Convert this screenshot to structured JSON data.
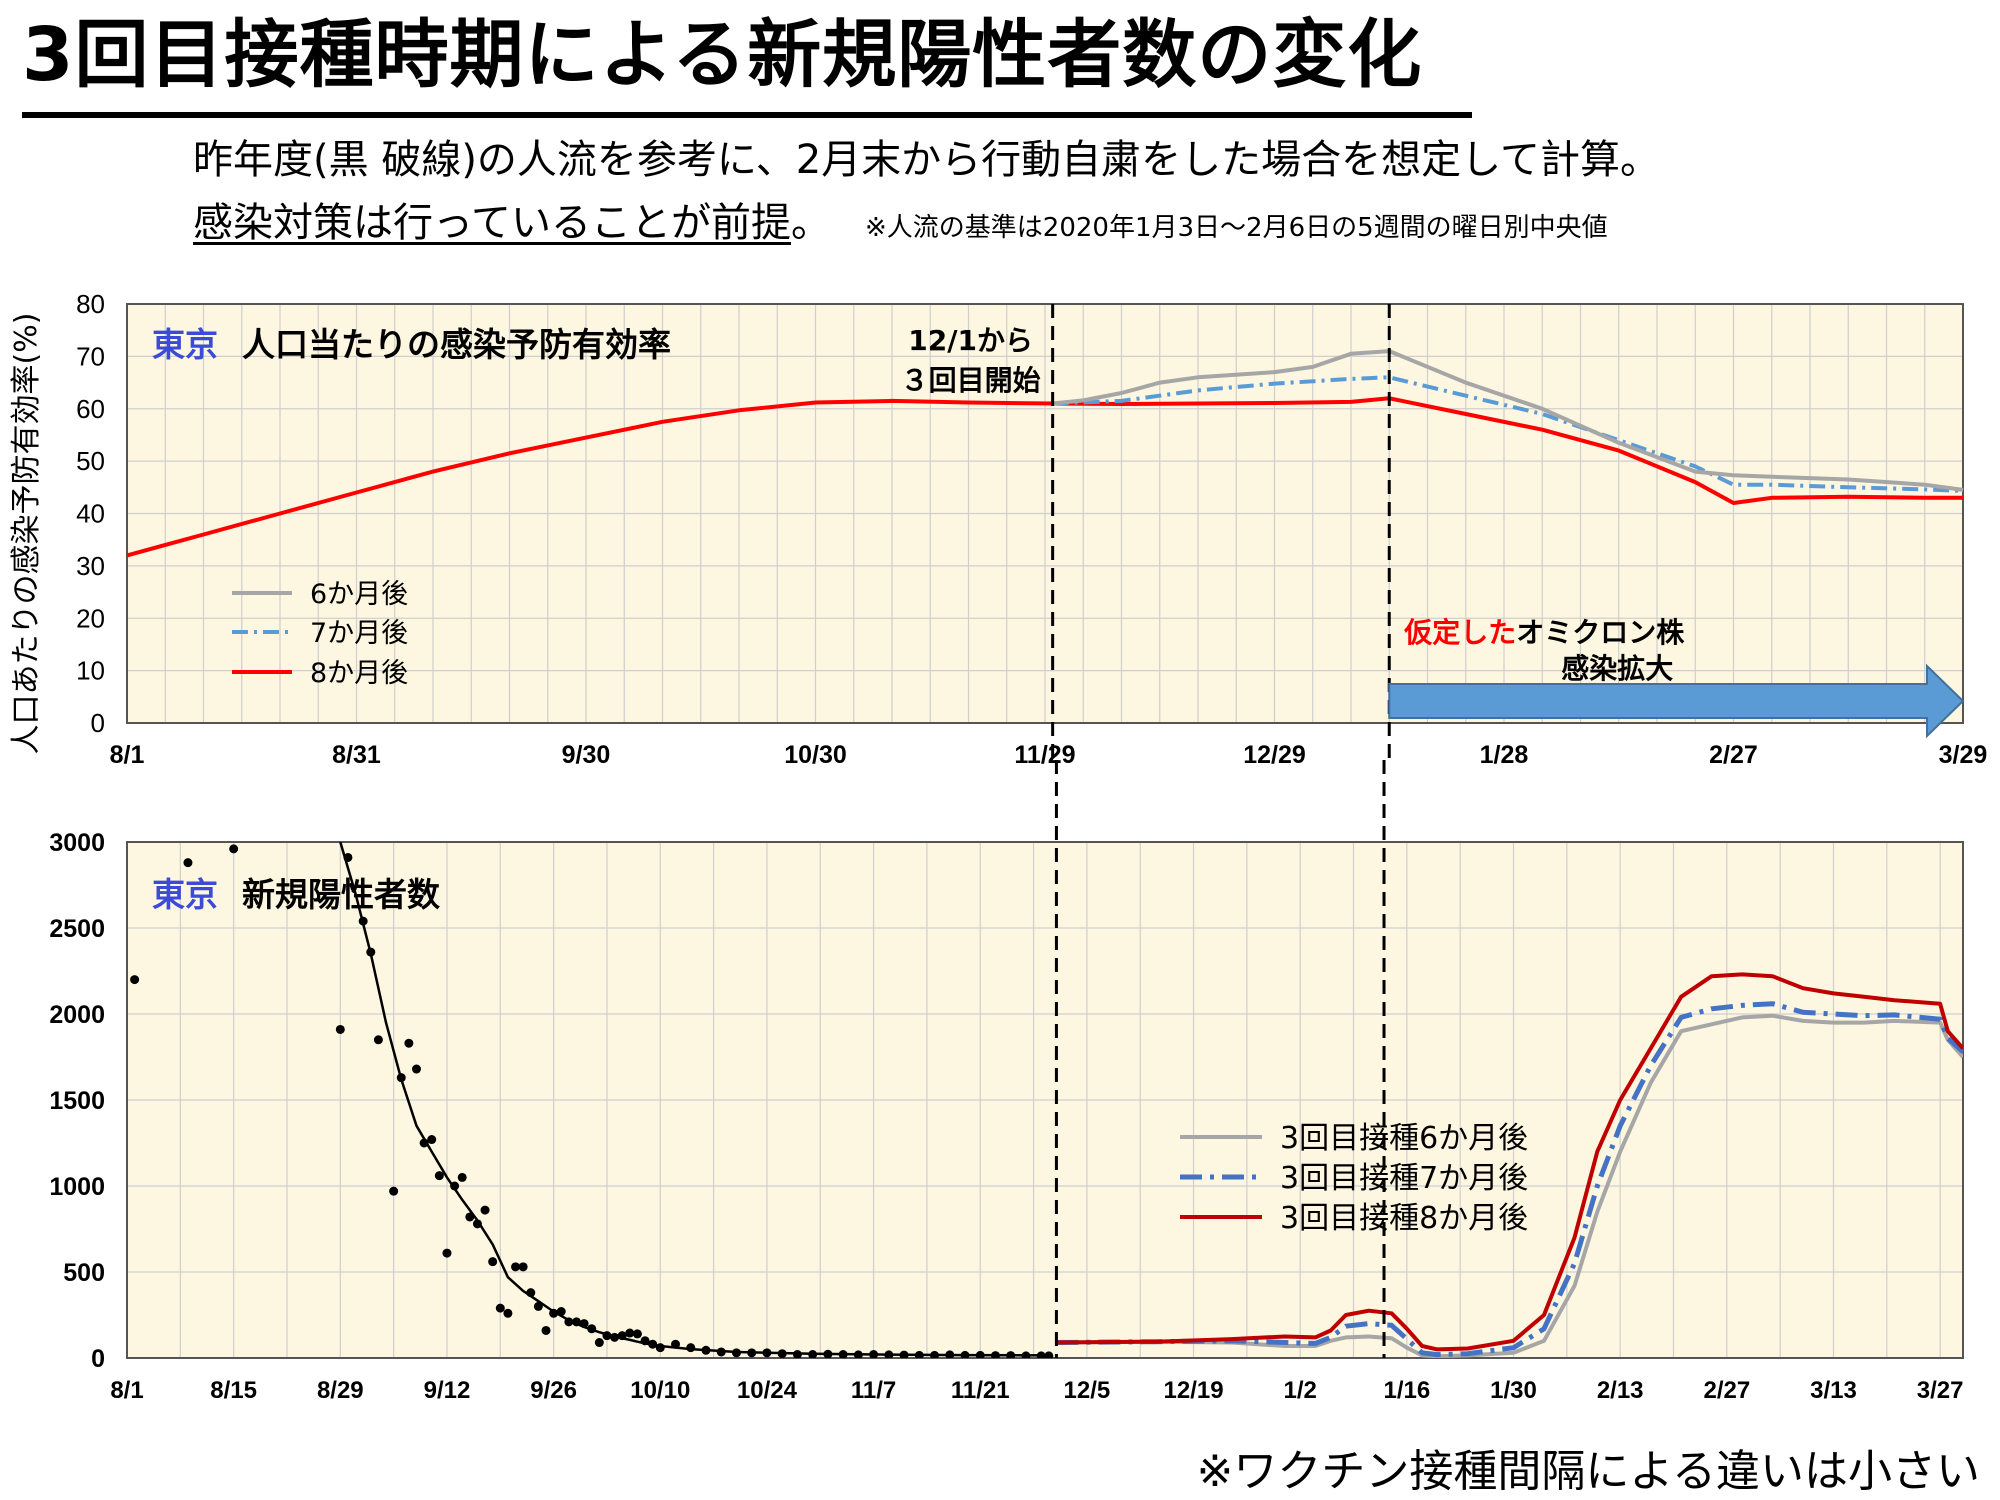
{
  "page": {
    "title": "3回目接種時期による新規陽性者数の変化",
    "subtitle_line1": "昨年度(黒 破線)の人流を参考に、2月末から行動自粛をした場合を想定して計算。",
    "subtitle_line2_underlined": "感染対策は行っていることが前提",
    "subtitle_line2_tail": "。",
    "subtitle_line2_note": "※人流の基準は2020年1月3日～2月6日の5週間の曜日別中央値",
    "footnote": "※ワクチン接種間隔による違いは小さい"
  },
  "chart_data": [
    {
      "type": "line",
      "title_prefix": "東京",
      "title": "人口当たりの感染予防有効率",
      "ylabel": "人口あたりの感染予防有効率(%)",
      "ylim": [
        0,
        80
      ],
      "yticks": [
        0,
        10,
        20,
        30,
        40,
        50,
        60,
        70,
        80
      ],
      "xlim_days": [
        0,
        240
      ],
      "xtick_labels": [
        "8/1",
        "8/31",
        "9/30",
        "10/30",
        "11/29",
        "12/29",
        "1/28",
        "2/27",
        "3/29"
      ],
      "xtick_days": [
        0,
        30,
        60,
        90,
        120,
        150,
        180,
        210,
        240
      ],
      "vlines_days": [
        121,
        165
      ],
      "vline_label": "12/1から\n３回目開始",
      "arrow_label_red": "仮定した",
      "arrow_label_black": "オミクロン株",
      "arrow_label_line2": "感染拡大",
      "arrow_range_days": [
        165,
        240
      ],
      "legend": {
        "position": "left-middle",
        "items": [
          "6か月後",
          "7か月後",
          "8か月後"
        ]
      },
      "grid": true,
      "colors": {
        "six": "#a6a6a6",
        "seven": "#5b9bd5",
        "eight": "#ff0000",
        "background": "#fdf6e0",
        "arrow": "#5b9bd5"
      },
      "series": [
        {
          "name": "8か月後",
          "x": [
            0,
            5,
            10,
            20,
            30,
            40,
            50,
            60,
            70,
            80,
            90,
            100,
            110,
            121,
            130,
            140,
            150,
            160,
            165,
            175,
            185,
            195,
            205,
            210,
            215,
            225,
            235,
            240
          ],
          "y": [
            32,
            34,
            36,
            40,
            44,
            48,
            51.5,
            54.5,
            57.5,
            59.7,
            61.2,
            61.5,
            61.2,
            61,
            60.9,
            61,
            61.1,
            61.3,
            62,
            59,
            56,
            52,
            46,
            42,
            43,
            43.2,
            43,
            43
          ]
        },
        {
          "name": "7か月後",
          "x": [
            121,
            130,
            140,
            150,
            160,
            165,
            175,
            185,
            195,
            205,
            210,
            215,
            225,
            235,
            240
          ],
          "y": [
            61,
            61.5,
            63.5,
            64.8,
            65.7,
            66,
            62.5,
            59,
            54,
            49,
            45.5,
            45.5,
            45,
            44.6,
            44.3
          ]
        },
        {
          "name": "6か月後",
          "x": [
            121,
            125,
            130,
            135,
            140,
            150,
            155,
            160,
            165,
            175,
            185,
            195,
            205,
            210,
            215,
            225,
            235,
            240
          ],
          "y": [
            61,
            61.6,
            63,
            65,
            66,
            67,
            68,
            70.5,
            71,
            65,
            60,
            53.5,
            48,
            47.3,
            47,
            46.5,
            45.5,
            44.5
          ]
        }
      ]
    },
    {
      "type": "line",
      "title_prefix": "東京",
      "title": "新規陽性者数",
      "ylim": [
        0,
        3000
      ],
      "yticks": [
        0,
        500,
        1000,
        1500,
        2000,
        2500,
        3000
      ],
      "xlim_days": [
        0,
        241
      ],
      "xtick_labels": [
        "8/1",
        "8/15",
        "8/29",
        "9/12",
        "9/26",
        "10/10",
        "10/24",
        "11/7",
        "11/21",
        "12/5",
        "12/19",
        "1/2",
        "1/16",
        "1/30",
        "2/13",
        "2/27",
        "3/13",
        "3/27"
      ],
      "xtick_days": [
        0,
        14,
        28,
        42,
        56,
        70,
        84,
        98,
        112,
        126,
        140,
        154,
        168,
        182,
        196,
        210,
        224,
        238
      ],
      "vlines_days": [
        122,
        165
      ],
      "legend": {
        "position": "right-middle",
        "items": [
          "3回目接種6か月後",
          "3回目接種7か月後",
          "3回目接種8か月後"
        ]
      },
      "grid": true,
      "colors": {
        "six": "#a6a6a6",
        "seven": "#4472c4",
        "eight": "#c00000",
        "observed": "#000000"
      },
      "observed_points": {
        "x": [
          1,
          8,
          14,
          28,
          29,
          31,
          32,
          33,
          35,
          36,
          37,
          38,
          39,
          40,
          41,
          42,
          43,
          44,
          45,
          46,
          47,
          48,
          49,
          50,
          51,
          52,
          53,
          54,
          55,
          56,
          57,
          58,
          59,
          60,
          61,
          62,
          63,
          64,
          65,
          66,
          67,
          68,
          69,
          70,
          72,
          74,
          76,
          78,
          80,
          82,
          84,
          86,
          88,
          90,
          92,
          94,
          96,
          98,
          100,
          102,
          104,
          106,
          108,
          110,
          112,
          114,
          116,
          118,
          120,
          121
        ],
        "y": [
          2200,
          2880,
          2960,
          1910,
          2910,
          2540,
          2360,
          1850,
          970,
          1630,
          1830,
          1680,
          1250,
          1270,
          1060,
          610,
          1000,
          1050,
          820,
          780,
          860,
          560,
          290,
          260,
          530,
          530,
          380,
          300,
          160,
          260,
          270,
          210,
          210,
          200,
          170,
          90,
          130,
          120,
          130,
          145,
          140,
          100,
          80,
          60,
          80,
          60,
          45,
          35,
          30,
          30,
          30,
          25,
          20,
          20,
          22,
          20,
          18,
          20,
          18,
          17,
          15,
          15,
          18,
          15,
          15,
          14,
          14,
          12,
          12,
          12
        ]
      },
      "observed_smooth": {
        "x": [
          28,
          30,
          32,
          34,
          36,
          38,
          40,
          42,
          44,
          46,
          48,
          50,
          52,
          54,
          56,
          58,
          60,
          62,
          64,
          66,
          68,
          70,
          74,
          80,
          90,
          100,
          110,
          121
        ],
        "y": [
          3000,
          2700,
          2350,
          1950,
          1620,
          1350,
          1200,
          1050,
          920,
          800,
          660,
          470,
          390,
          330,
          270,
          220,
          180,
          150,
          125,
          105,
          85,
          70,
          52,
          35,
          25,
          20,
          17,
          15
        ]
      },
      "series": [
        {
          "name": "3回目接種8か月後",
          "x": [
            122,
            135,
            145,
            152,
            156,
            158,
            160,
            163,
            166,
            168,
            170,
            172,
            176,
            182,
            186,
            190,
            193,
            196,
            200,
            204,
            208,
            212,
            216,
            220,
            224,
            228,
            232,
            238,
            239,
            241
          ],
          "y": [
            90,
            95,
            110,
            125,
            120,
            160,
            250,
            275,
            260,
            170,
            70,
            50,
            55,
            100,
            250,
            700,
            1200,
            1500,
            1800,
            2100,
            2220,
            2230,
            2220,
            2150,
            2120,
            2100,
            2080,
            2060,
            1900,
            1800
          ]
        },
        {
          "name": "3回目接種7か月後",
          "x": [
            122,
            135,
            145,
            152,
            156,
            158,
            160,
            163,
            166,
            168,
            170,
            172,
            176,
            182,
            186,
            190,
            193,
            196,
            200,
            204,
            208,
            212,
            216,
            220,
            224,
            228,
            232,
            238,
            239,
            241
          ],
          "y": [
            90,
            95,
            100,
            90,
            85,
            120,
            185,
            200,
            190,
            110,
            30,
            20,
            25,
            60,
            170,
            550,
            1000,
            1350,
            1700,
            1980,
            2030,
            2050,
            2060,
            2010,
            2000,
            1990,
            1995,
            1970,
            1860,
            1780
          ]
        },
        {
          "name": "3回目接種6か月後",
          "x": [
            122,
            135,
            145,
            152,
            156,
            158,
            160,
            163,
            166,
            168,
            170,
            172,
            176,
            182,
            186,
            190,
            193,
            196,
            200,
            204,
            208,
            212,
            216,
            220,
            224,
            228,
            232,
            238,
            239,
            241
          ],
          "y": [
            90,
            95,
            90,
            70,
            70,
            100,
            120,
            125,
            115,
            60,
            15,
            10,
            15,
            30,
            100,
            420,
            850,
            1200,
            1600,
            1900,
            1940,
            1980,
            1990,
            1960,
            1950,
            1950,
            1960,
            1950,
            1850,
            1750
          ]
        }
      ]
    }
  ]
}
